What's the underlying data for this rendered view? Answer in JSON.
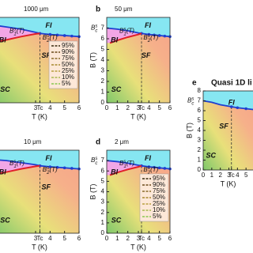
{
  "chart_data": [
    {
      "type": "phase",
      "title": "1000 μm",
      "xlabel": "T (K)",
      "xlim": [
        0,
        6
      ],
      "ylim": [
        0,
        8
      ],
      "xticks": [
        3,
        {
          "value": 3.3,
          "label": "Tc"
        },
        4,
        5,
        6
      ],
      "yticks": [],
      "regions": [
        "FI",
        "BI",
        "SF",
        "SC"
      ],
      "annotations": [
        {
          "base": "B",
          "sub": "1",
          "sup": "s",
          "suffix": "(T)"
        },
        {
          "base": "B",
          "sub": "2",
          "sup": "s",
          "suffix": "(T)"
        }
      ],
      "series": [
        {
          "color": "#1f3fd0",
          "x": [
            0,
            1,
            2,
            3,
            3.3,
            4,
            4.5,
            5,
            5.5,
            6
          ],
          "values": [
            7.3,
            7.1,
            6.9,
            6.6,
            6.5,
            6.4,
            6.35,
            6.3,
            6.25,
            6.2
          ]
        },
        {
          "color": "#e0202a",
          "x": [
            0.3,
            1,
            2,
            3,
            3.3
          ],
          "values": [
            5.7,
            5.9,
            6.2,
            6.45,
            6.5
          ]
        }
      ],
      "legend": [
        {
          "name": "95%",
          "color": "#3a2a10"
        },
        {
          "name": "90%",
          "color": "#6b4a1a"
        },
        {
          "name": "75%",
          "color": "#8a6a2a"
        },
        {
          "name": "50%",
          "color": "#a8882e"
        },
        {
          "name": "25%",
          "color": "#b8a040"
        },
        {
          "name": "10%",
          "color": "#a8b850"
        },
        {
          "name": "5%",
          "color": "#8ac850"
        }
      ]
    },
    {
      "type": "phase",
      "panel_label": "b",
      "title": "50 μm",
      "xlabel": "T (K)",
      "ylabel": "B (T)",
      "xlim": [
        0,
        6
      ],
      "ylim": [
        0,
        8
      ],
      "xticks": [
        0,
        1,
        2,
        3,
        {
          "value": 3.3,
          "label": "Tc"
        },
        4,
        5,
        6
      ],
      "yticks": [
        0,
        1,
        2,
        3,
        4,
        5,
        6,
        7
      ],
      "regions": [
        "FI",
        "BI",
        "SF",
        "SC"
      ],
      "annotations": [
        {
          "base": "B",
          "sub": "c",
          "sup": "s"
        },
        {
          "base": "B",
          "sub": "1",
          "sup": "s",
          "suffix": "(T)"
        },
        {
          "base": "B",
          "sub": "2",
          "sup": "s",
          "suffix": "(T)"
        }
      ],
      "series": [
        {
          "color": "#1f3fd0",
          "x": [
            0,
            1,
            2,
            3,
            3.3,
            4,
            4.5,
            5,
            5.5,
            6
          ],
          "values": [
            7.0,
            6.9,
            6.75,
            6.55,
            6.5,
            6.4,
            6.35,
            6.3,
            6.25,
            6.2
          ]
        },
        {
          "color": "#e0202a",
          "x": [
            0.3,
            1,
            2,
            3,
            3.3
          ],
          "values": [
            5.6,
            5.85,
            6.15,
            6.4,
            6.5
          ]
        }
      ]
    },
    {
      "type": "phase",
      "title": "10 μm",
      "xlabel": "T (K)",
      "xlim": [
        0,
        6
      ],
      "ylim": [
        0,
        8
      ],
      "xticks": [
        3,
        {
          "value": 3.3,
          "label": "Tc"
        },
        4,
        5,
        6
      ],
      "yticks": [],
      "regions": [
        "FI",
        "BI",
        "SF",
        "SC"
      ],
      "annotations": [
        {
          "base": "B",
          "sub": "1",
          "sup": "s",
          "suffix": "(T)"
        },
        {
          "base": "B",
          "sub": "2",
          "sup": "s",
          "suffix": "(T)"
        }
      ],
      "series": [
        {
          "color": "#1f3fd0",
          "x": [
            0,
            1,
            2,
            3,
            3.3,
            4,
            4.5,
            5,
            5.5,
            6
          ],
          "values": [
            7.1,
            7.0,
            6.8,
            6.6,
            6.5,
            6.4,
            6.35,
            6.3,
            6.25,
            6.2
          ]
        },
        {
          "color": "#e0202a",
          "x": [
            0.3,
            1,
            2,
            3,
            3.3
          ],
          "values": [
            5.7,
            5.9,
            6.2,
            6.45,
            6.5
          ]
        }
      ]
    },
    {
      "type": "phase",
      "panel_label": "d",
      "title": "2 μm",
      "xlabel": "T (K)",
      "ylabel": "B (T)",
      "xlim": [
        0,
        6
      ],
      "ylim": [
        0,
        8
      ],
      "xticks": [
        0,
        1,
        2,
        3,
        {
          "value": 3.3,
          "label": "Tc"
        },
        4,
        5,
        6
      ],
      "yticks": [
        0,
        1,
        2,
        3,
        4,
        5,
        6,
        7
      ],
      "regions": [
        "FI",
        "BI",
        "SF",
        "SC"
      ],
      "annotations": [
        {
          "base": "B",
          "sub": "c",
          "sup": "s"
        },
        {
          "base": "B",
          "sub": "1",
          "sup": "s",
          "suffix": "(T)"
        },
        {
          "base": "B",
          "sub": "2",
          "sup": "s",
          "suffix": "(T)"
        }
      ],
      "series": [
        {
          "color": "#1f3fd0",
          "x": [
            0,
            1,
            2,
            3,
            3.3,
            4,
            4.5,
            5,
            5.5,
            6
          ],
          "values": [
            7.0,
            6.9,
            6.75,
            6.55,
            6.5,
            6.4,
            6.35,
            6.3,
            6.25,
            6.2
          ]
        },
        {
          "color": "#e0202a",
          "x": [
            0.3,
            1,
            2,
            3,
            3.3
          ],
          "values": [
            5.6,
            5.85,
            6.15,
            6.4,
            6.5
          ]
        }
      ],
      "legend": [
        {
          "name": "95%",
          "color": "#3a2a10"
        },
        {
          "name": "90%",
          "color": "#6b4a1a"
        },
        {
          "name": "75%",
          "color": "#8a6a2a"
        },
        {
          "name": "50%",
          "color": "#a8882e"
        },
        {
          "name": "25%",
          "color": "#b8a040"
        },
        {
          "name": "10%",
          "color": "#a8b850"
        },
        {
          "name": "5%",
          "color": "#8ac850"
        }
      ]
    },
    {
      "type": "phase",
      "panel_label": "e",
      "title": "Quasi 1D li",
      "xlabel": "T (K)",
      "ylabel": "B (T)",
      "xlim": [
        0,
        6
      ],
      "ylim": [
        0,
        8
      ],
      "xticks": [
        0,
        1,
        2,
        3,
        {
          "value": 3.3,
          "label": "Tc"
        },
        4,
        5,
        6
      ],
      "yticks": [
        0,
        1,
        2,
        3,
        4,
        5,
        6,
        7,
        8
      ],
      "regions": [
        "FI",
        "SF",
        "SC"
      ],
      "annotations": [
        {
          "base": "B",
          "sub": "c",
          "sup": "s"
        }
      ],
      "series": [
        {
          "color": "#1f3fd0",
          "x": [
            0,
            1,
            2,
            3,
            3.3,
            4,
            5,
            6
          ],
          "values": [
            7.0,
            6.85,
            6.6,
            6.45,
            6.4,
            6.3,
            6.2,
            6.1
          ]
        }
      ]
    }
  ]
}
